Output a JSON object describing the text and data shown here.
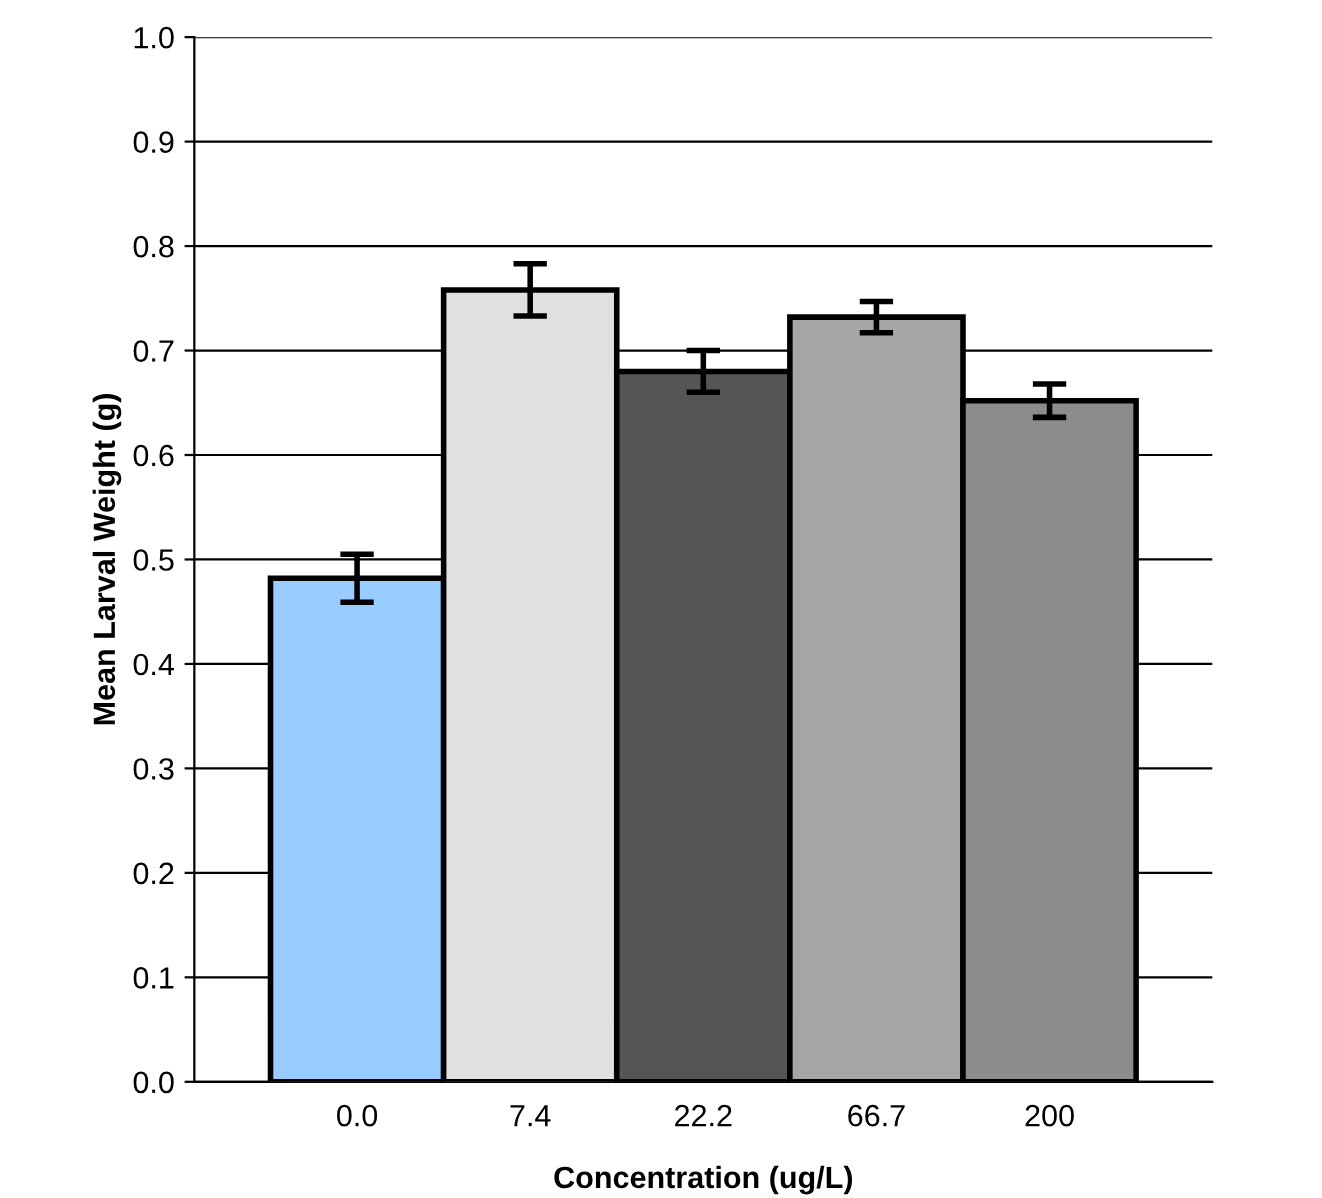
{
  "chart_data": {
    "type": "bar",
    "xlabel": "Concentration (ug/L)",
    "ylabel": "Mean Larval Weight (g)",
    "categories": [
      "0.0",
      "7.4",
      "22.2",
      "66.7",
      "200"
    ],
    "values": [
      0.482,
      0.758,
      0.68,
      0.732,
      0.652
    ],
    "errors": [
      0.023,
      0.025,
      0.02,
      0.015,
      0.016
    ],
    "colors": [
      "#99ccff",
      "#e0e0e0",
      "#555555",
      "#a6a6a6",
      "#8c8c8c"
    ],
    "ylim": [
      0,
      1.0
    ],
    "yticks": [
      {
        "value": 0,
        "label": "0.0"
      },
      0.1,
      0.2,
      0.3,
      0.4,
      0.5,
      0.6,
      0.7,
      0.8,
      0.9,
      {
        "value": 1.0,
        "label": "1.0"
      }
    ],
    "grid": "y",
    "legend": false
  }
}
